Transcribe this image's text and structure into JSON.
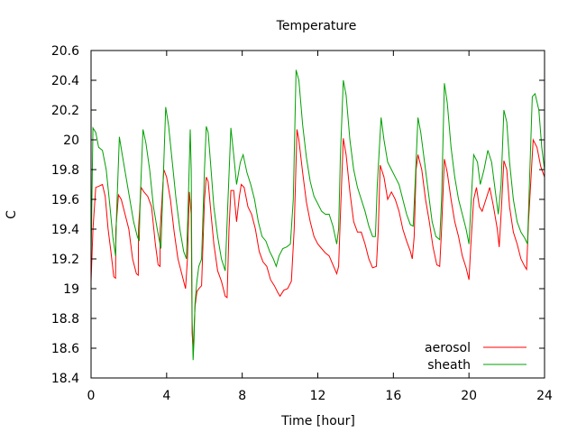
{
  "chart_data": {
    "type": "line",
    "title": "Temperature",
    "xlabel": "Time [hour]",
    "ylabel": "C",
    "xlim": [
      0,
      24
    ],
    "ylim": [
      18.4,
      20.6
    ],
    "x_ticks": [
      0,
      4,
      8,
      12,
      16,
      20,
      24
    ],
    "x_tick_labels": [
      "0",
      "4",
      "8",
      "12",
      "16",
      "20",
      "24"
    ],
    "y_ticks": [
      18.4,
      18.6,
      18.8,
      19.0,
      19.2,
      19.4,
      19.6,
      19.8,
      20.0,
      20.2,
      20.4,
      20.6
    ],
    "y_tick_labels": [
      "18.4",
      "18.6",
      "18.8",
      "19",
      "19.2",
      "19.4",
      "19.6",
      "19.8",
      "20",
      "20.2",
      "20.4",
      "20.6"
    ],
    "grid": false,
    "legend_position": "bottom-right",
    "series": [
      {
        "name": "aerosol",
        "color": "#ff0000",
        "points": [
          [
            0.0,
            19.05
          ],
          [
            0.1,
            19.4
          ],
          [
            0.25,
            19.68
          ],
          [
            0.45,
            19.69
          ],
          [
            0.6,
            19.7
          ],
          [
            0.75,
            19.62
          ],
          [
            0.9,
            19.4
          ],
          [
            1.05,
            19.25
          ],
          [
            1.2,
            19.08
          ],
          [
            1.3,
            19.07
          ],
          [
            1.31,
            19.4
          ],
          [
            1.45,
            19.63
          ],
          [
            1.6,
            19.6
          ],
          [
            1.8,
            19.5
          ],
          [
            2.0,
            19.4
          ],
          [
            2.2,
            19.2
          ],
          [
            2.4,
            19.1
          ],
          [
            2.5,
            19.09
          ],
          [
            2.51,
            19.4
          ],
          [
            2.65,
            19.68
          ],
          [
            2.8,
            19.65
          ],
          [
            3.0,
            19.62
          ],
          [
            3.2,
            19.55
          ],
          [
            3.4,
            19.3
          ],
          [
            3.55,
            19.16
          ],
          [
            3.65,
            19.15
          ],
          [
            3.66,
            19.4
          ],
          [
            3.85,
            19.8
          ],
          [
            4.0,
            19.75
          ],
          [
            4.2,
            19.6
          ],
          [
            4.4,
            19.38
          ],
          [
            4.6,
            19.2
          ],
          [
            4.8,
            19.1
          ],
          [
            5.0,
            19.0
          ],
          [
            5.1,
            19.2
          ],
          [
            5.2,
            19.65
          ],
          [
            5.3,
            19.5
          ],
          [
            5.35,
            18.7
          ],
          [
            5.4,
            18.6
          ],
          [
            5.45,
            18.72
          ],
          [
            5.5,
            18.88
          ],
          [
            5.6,
            18.98
          ],
          [
            5.7,
            19.0
          ],
          [
            5.85,
            19.02
          ],
          [
            6.0,
            19.6
          ],
          [
            6.1,
            19.75
          ],
          [
            6.2,
            19.72
          ],
          [
            6.35,
            19.5
          ],
          [
            6.5,
            19.3
          ],
          [
            6.7,
            19.12
          ],
          [
            6.9,
            19.05
          ],
          [
            7.1,
            18.95
          ],
          [
            7.2,
            18.94
          ],
          [
            7.3,
            19.4
          ],
          [
            7.4,
            19.66
          ],
          [
            7.55,
            19.66
          ],
          [
            7.7,
            19.45
          ],
          [
            7.85,
            19.62
          ],
          [
            7.95,
            19.7
          ],
          [
            8.1,
            19.68
          ],
          [
            8.3,
            19.55
          ],
          [
            8.5,
            19.5
          ],
          [
            8.7,
            19.4
          ],
          [
            8.9,
            19.25
          ],
          [
            9.1,
            19.18
          ],
          [
            9.3,
            19.15
          ],
          [
            9.5,
            19.06
          ],
          [
            9.7,
            19.02
          ],
          [
            9.9,
            18.97
          ],
          [
            10.0,
            18.95
          ],
          [
            10.2,
            18.99
          ],
          [
            10.4,
            19.0
          ],
          [
            10.6,
            19.05
          ],
          [
            10.75,
            19.4
          ],
          [
            10.9,
            20.07
          ],
          [
            11.0,
            20.0
          ],
          [
            11.2,
            19.78
          ],
          [
            11.4,
            19.58
          ],
          [
            11.6,
            19.45
          ],
          [
            11.8,
            19.35
          ],
          [
            12.0,
            19.3
          ],
          [
            12.2,
            19.27
          ],
          [
            12.4,
            19.24
          ],
          [
            12.6,
            19.22
          ],
          [
            12.8,
            19.16
          ],
          [
            13.0,
            19.1
          ],
          [
            13.1,
            19.15
          ],
          [
            13.2,
            19.5
          ],
          [
            13.35,
            20.01
          ],
          [
            13.5,
            19.9
          ],
          [
            13.7,
            19.65
          ],
          [
            13.9,
            19.45
          ],
          [
            14.1,
            19.38
          ],
          [
            14.3,
            19.38
          ],
          [
            14.5,
            19.3
          ],
          [
            14.7,
            19.2
          ],
          [
            14.9,
            19.14
          ],
          [
            15.1,
            19.15
          ],
          [
            15.2,
            19.4
          ],
          [
            15.3,
            19.83
          ],
          [
            15.5,
            19.75
          ],
          [
            15.7,
            19.6
          ],
          [
            15.9,
            19.65
          ],
          [
            16.1,
            19.6
          ],
          [
            16.3,
            19.52
          ],
          [
            16.5,
            19.4
          ],
          [
            16.7,
            19.32
          ],
          [
            16.9,
            19.25
          ],
          [
            17.0,
            19.2
          ],
          [
            17.1,
            19.35
          ],
          [
            17.2,
            19.8
          ],
          [
            17.3,
            19.9
          ],
          [
            17.5,
            19.8
          ],
          [
            17.7,
            19.6
          ],
          [
            17.9,
            19.45
          ],
          [
            18.1,
            19.28
          ],
          [
            18.3,
            19.16
          ],
          [
            18.45,
            19.15
          ],
          [
            18.55,
            19.4
          ],
          [
            18.7,
            19.87
          ],
          [
            18.85,
            19.78
          ],
          [
            19.05,
            19.6
          ],
          [
            19.25,
            19.45
          ],
          [
            19.45,
            19.35
          ],
          [
            19.65,
            19.22
          ],
          [
            19.85,
            19.14
          ],
          [
            20.0,
            19.06
          ],
          [
            20.1,
            19.3
          ],
          [
            20.25,
            19.6
          ],
          [
            20.4,
            19.68
          ],
          [
            20.55,
            19.55
          ],
          [
            20.7,
            19.52
          ],
          [
            20.9,
            19.6
          ],
          [
            21.1,
            19.68
          ],
          [
            21.3,
            19.55
          ],
          [
            21.5,
            19.4
          ],
          [
            21.6,
            19.28
          ],
          [
            21.7,
            19.5
          ],
          [
            21.85,
            19.86
          ],
          [
            22.0,
            19.8
          ],
          [
            22.15,
            19.55
          ],
          [
            22.35,
            19.38
          ],
          [
            22.55,
            19.3
          ],
          [
            22.75,
            19.2
          ],
          [
            22.95,
            19.15
          ],
          [
            23.05,
            19.13
          ],
          [
            23.15,
            19.45
          ],
          [
            23.4,
            20.0
          ],
          [
            23.6,
            19.95
          ],
          [
            23.8,
            19.82
          ],
          [
            24.0,
            19.75
          ]
        ]
      },
      {
        "name": "sheath",
        "color": "#00a000",
        "points": [
          [
            0.0,
            19.2
          ],
          [
            0.1,
            20.08
          ],
          [
            0.25,
            20.05
          ],
          [
            0.4,
            19.95
          ],
          [
            0.6,
            19.93
          ],
          [
            0.8,
            19.8
          ],
          [
            1.0,
            19.55
          ],
          [
            1.15,
            19.35
          ],
          [
            1.3,
            19.22
          ],
          [
            1.35,
            19.5
          ],
          [
            1.5,
            20.02
          ],
          [
            1.65,
            19.9
          ],
          [
            1.85,
            19.75
          ],
          [
            2.05,
            19.6
          ],
          [
            2.25,
            19.45
          ],
          [
            2.45,
            19.35
          ],
          [
            2.55,
            19.32
          ],
          [
            2.6,
            19.6
          ],
          [
            2.75,
            20.07
          ],
          [
            2.9,
            19.98
          ],
          [
            3.1,
            19.8
          ],
          [
            3.3,
            19.55
          ],
          [
            3.5,
            19.4
          ],
          [
            3.7,
            19.27
          ],
          [
            3.8,
            19.65
          ],
          [
            3.95,
            20.22
          ],
          [
            4.1,
            20.1
          ],
          [
            4.3,
            19.85
          ],
          [
            4.5,
            19.6
          ],
          [
            4.7,
            19.4
          ],
          [
            4.9,
            19.25
          ],
          [
            5.05,
            19.2
          ],
          [
            5.15,
            19.6
          ],
          [
            5.25,
            20.07
          ],
          [
            5.3,
            19.8
          ],
          [
            5.35,
            18.8
          ],
          [
            5.4,
            18.52
          ],
          [
            5.45,
            18.65
          ],
          [
            5.5,
            18.9
          ],
          [
            5.6,
            19.05
          ],
          [
            5.7,
            19.15
          ],
          [
            5.85,
            19.2
          ],
          [
            6.0,
            19.8
          ],
          [
            6.1,
            20.09
          ],
          [
            6.2,
            20.05
          ],
          [
            6.35,
            19.8
          ],
          [
            6.5,
            19.55
          ],
          [
            6.7,
            19.35
          ],
          [
            6.9,
            19.2
          ],
          [
            7.1,
            19.12
          ],
          [
            7.25,
            19.6
          ],
          [
            7.4,
            20.08
          ],
          [
            7.55,
            19.9
          ],
          [
            7.7,
            19.7
          ],
          [
            7.9,
            19.85
          ],
          [
            8.05,
            19.9
          ],
          [
            8.25,
            19.78
          ],
          [
            8.45,
            19.7
          ],
          [
            8.65,
            19.6
          ],
          [
            8.85,
            19.45
          ],
          [
            9.05,
            19.35
          ],
          [
            9.25,
            19.32
          ],
          [
            9.45,
            19.25
          ],
          [
            9.65,
            19.2
          ],
          [
            9.8,
            19.15
          ],
          [
            9.95,
            19.22
          ],
          [
            10.15,
            19.27
          ],
          [
            10.35,
            19.28
          ],
          [
            10.55,
            19.3
          ],
          [
            10.7,
            19.6
          ],
          [
            10.85,
            20.47
          ],
          [
            11.0,
            20.4
          ],
          [
            11.2,
            20.1
          ],
          [
            11.4,
            19.88
          ],
          [
            11.6,
            19.72
          ],
          [
            11.8,
            19.62
          ],
          [
            12.0,
            19.57
          ],
          [
            12.2,
            19.52
          ],
          [
            12.4,
            19.5
          ],
          [
            12.6,
            19.5
          ],
          [
            12.8,
            19.42
          ],
          [
            13.0,
            19.3
          ],
          [
            13.1,
            19.4
          ],
          [
            13.2,
            19.9
          ],
          [
            13.35,
            20.4
          ],
          [
            13.5,
            20.3
          ],
          [
            13.7,
            20.0
          ],
          [
            13.9,
            19.8
          ],
          [
            14.1,
            19.68
          ],
          [
            14.3,
            19.6
          ],
          [
            14.5,
            19.52
          ],
          [
            14.7,
            19.42
          ],
          [
            14.9,
            19.35
          ],
          [
            15.05,
            19.35
          ],
          [
            15.15,
            19.7
          ],
          [
            15.35,
            20.15
          ],
          [
            15.5,
            20.0
          ],
          [
            15.7,
            19.85
          ],
          [
            15.9,
            19.8
          ],
          [
            16.1,
            19.75
          ],
          [
            16.3,
            19.7
          ],
          [
            16.5,
            19.6
          ],
          [
            16.7,
            19.5
          ],
          [
            16.9,
            19.43
          ],
          [
            17.05,
            19.42
          ],
          [
            17.15,
            19.7
          ],
          [
            17.3,
            20.15
          ],
          [
            17.45,
            20.05
          ],
          [
            17.65,
            19.85
          ],
          [
            17.85,
            19.65
          ],
          [
            18.05,
            19.45
          ],
          [
            18.25,
            19.35
          ],
          [
            18.45,
            19.33
          ],
          [
            18.55,
            19.6
          ],
          [
            18.7,
            20.38
          ],
          [
            18.85,
            20.25
          ],
          [
            19.05,
            19.95
          ],
          [
            19.25,
            19.75
          ],
          [
            19.45,
            19.6
          ],
          [
            19.65,
            19.5
          ],
          [
            19.85,
            19.4
          ],
          [
            20.0,
            19.3
          ],
          [
            20.1,
            19.55
          ],
          [
            20.25,
            19.9
          ],
          [
            20.45,
            19.85
          ],
          [
            20.6,
            19.7
          ],
          [
            20.8,
            19.8
          ],
          [
            21.0,
            19.93
          ],
          [
            21.2,
            19.85
          ],
          [
            21.4,
            19.65
          ],
          [
            21.55,
            19.5
          ],
          [
            21.7,
            19.7
          ],
          [
            21.85,
            20.2
          ],
          [
            22.0,
            20.12
          ],
          [
            22.15,
            19.85
          ],
          [
            22.35,
            19.6
          ],
          [
            22.55,
            19.45
          ],
          [
            22.75,
            19.38
          ],
          [
            22.95,
            19.34
          ],
          [
            23.1,
            19.3
          ],
          [
            23.2,
            19.7
          ],
          [
            23.35,
            20.29
          ],
          [
            23.5,
            20.31
          ],
          [
            23.7,
            20.2
          ],
          [
            23.85,
            19.95
          ],
          [
            24.0,
            19.8
          ]
        ]
      }
    ]
  }
}
